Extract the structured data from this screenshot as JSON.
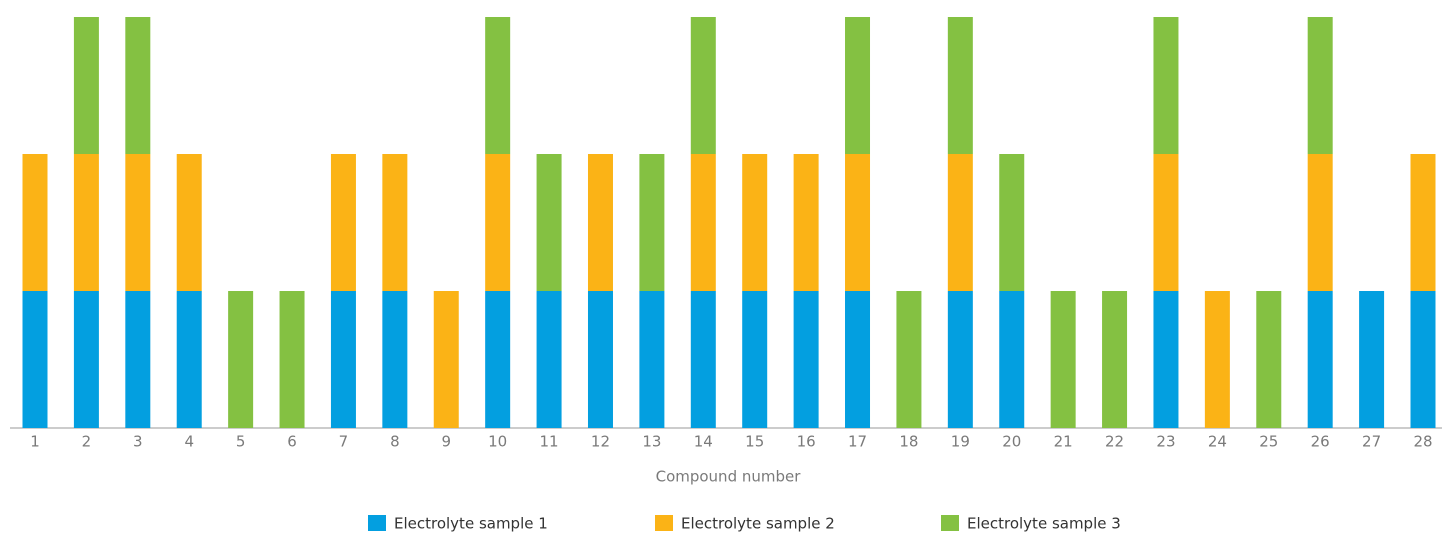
{
  "chart_data": {
    "type": "stacked_bar",
    "x_label": "Compound number",
    "categories": [
      "1",
      "2",
      "3",
      "4",
      "5",
      "6",
      "7",
      "8",
      "9",
      "10",
      "11",
      "12",
      "13",
      "14",
      "15",
      "16",
      "17",
      "18",
      "19",
      "20",
      "21",
      "22",
      "23",
      "24",
      "25",
      "26",
      "27",
      "28"
    ],
    "series": [
      {
        "name": "Electrolyte sample 1",
        "color": "#039fe0",
        "values": [
          1,
          1,
          1,
          1,
          0,
          0,
          1,
          1,
          0,
          1,
          1,
          1,
          1,
          1,
          1,
          1,
          1,
          0,
          1,
          1,
          0,
          0,
          1,
          0,
          0,
          1,
          1,
          1
        ]
      },
      {
        "name": "Electrolyte sample 2",
        "color": "#fbb316",
        "values": [
          1,
          1,
          1,
          1,
          0,
          0,
          1,
          1,
          1,
          1,
          0,
          1,
          0,
          1,
          1,
          1,
          1,
          0,
          1,
          0,
          0,
          0,
          1,
          1,
          0,
          1,
          0,
          1
        ]
      },
      {
        "name": "Electrolyte sample 3",
        "color": "#84c142",
        "values": [
          0,
          1,
          1,
          0,
          1,
          1,
          0,
          0,
          0,
          1,
          1,
          0,
          1,
          1,
          0,
          0,
          1,
          1,
          1,
          1,
          1,
          1,
          1,
          0,
          1,
          1,
          0,
          0
        ]
      }
    ],
    "legend": "bottom"
  }
}
